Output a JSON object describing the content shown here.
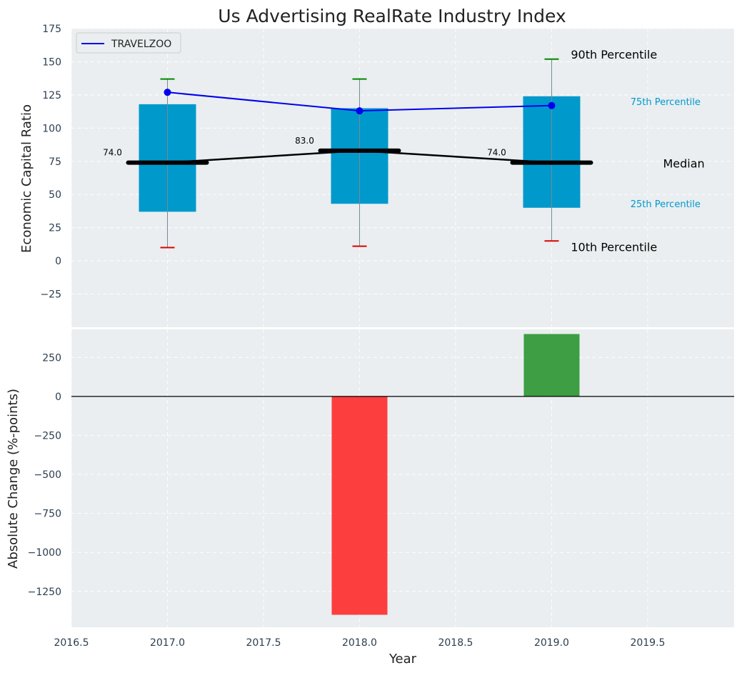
{
  "chart_data": [
    {
      "type": "box",
      "title": "Us Advertising RealRate Industry Index",
      "xlabel": "",
      "ylabel": "Economic Capital Ratio",
      "xlim": [
        2016.5,
        2019.95
      ],
      "ylim": [
        -50,
        175
      ],
      "yticks": [
        -25,
        0,
        25,
        50,
        75,
        100,
        125,
        150,
        175
      ],
      "ytick_labels": [
        "−25",
        "0",
        "25",
        "50",
        "75",
        "100",
        "125",
        "150",
        "175"
      ],
      "categories": [
        2017,
        2018,
        2019
      ],
      "p10": [
        10,
        11,
        15
      ],
      "p25": [
        37,
        43,
        40
      ],
      "median": [
        74,
        83,
        74
      ],
      "p75": [
        118,
        115,
        124
      ],
      "p90": [
        137,
        137,
        152
      ],
      "median_labels": [
        "74.0",
        "83.0",
        "74.0"
      ],
      "series": [
        {
          "name": "TRAVELZOO",
          "x": [
            2017,
            2018,
            2019
          ],
          "values": [
            127,
            113,
            117
          ],
          "color": "#0000ee"
        }
      ],
      "legend": {
        "position": "top-left",
        "entries": [
          "TRAVELZOO"
        ]
      },
      "annotations": [
        {
          "text": "90th Percentile",
          "x": 2019.1,
          "y": 155,
          "color": "#000000",
          "size": "large"
        },
        {
          "text": "75th Percentile",
          "x": 2019.41,
          "y": 120,
          "color": "#0099cc",
          "size": "small"
        },
        {
          "text": "Median",
          "x": 2019.58,
          "y": 73,
          "color": "#000000",
          "size": "large"
        },
        {
          "text": "25th Percentile",
          "x": 2019.41,
          "y": 43,
          "color": "#0099cc",
          "size": "small"
        },
        {
          "text": "10th Percentile",
          "x": 2019.1,
          "y": 10,
          "color": "#000000",
          "size": "large"
        }
      ],
      "colors": {
        "box": "#0099cc",
        "whisker_top": "#008800",
        "whisker_bottom": "#dd0000",
        "median": "#000000",
        "background": "#eaeef0"
      }
    },
    {
      "type": "bar",
      "title": "",
      "xlabel": "Year",
      "ylabel": "Absolute Change (%-points)",
      "xlim": [
        2016.5,
        2019.95
      ],
      "ylim": [
        -1480,
        430
      ],
      "yticks": [
        -1250,
        -1000,
        -750,
        -500,
        -250,
        0,
        250
      ],
      "ytick_labels": [
        "−1250",
        "−1000",
        "−750",
        "−500",
        "−250",
        "0",
        "250"
      ],
      "xticks": [
        2016.5,
        2017.0,
        2017.5,
        2018.0,
        2018.5,
        2019.0,
        2019.5
      ],
      "xtick_labels": [
        "2016.5",
        "2017.0",
        "2017.5",
        "2018.0",
        "2018.5",
        "2019.0",
        "2019.5"
      ],
      "categories": [
        2018,
        2019
      ],
      "values": [
        -1400,
        400
      ],
      "colors": {
        "positive": "#2a9530",
        "negative": "#ff2a2a",
        "background": "#eaeef0"
      }
    }
  ]
}
